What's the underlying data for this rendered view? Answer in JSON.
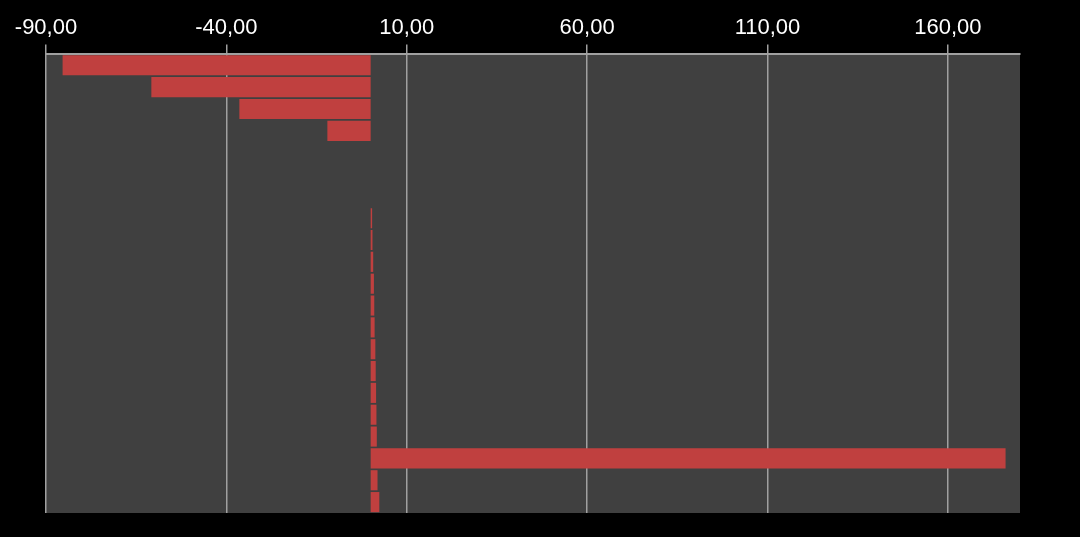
{
  "chart_data": {
    "type": "bar",
    "orientation": "horizontal",
    "categories": [
      null,
      null,
      null,
      null,
      null,
      null,
      null,
      null,
      null,
      null,
      null,
      null,
      null,
      null,
      null,
      null,
      null,
      null,
      null,
      null,
      null
    ],
    "values": [
      -85.4,
      -60.8,
      -36.4,
      -12.0,
      null,
      null,
      null,
      0.4,
      0.5,
      0.7,
      0.9,
      1.0,
      1.1,
      1.3,
      1.4,
      1.5,
      1.6,
      1.7,
      176.0,
      1.9,
      2.4
    ],
    "color": "#c0403f",
    "xlim": [
      -90,
      180
    ],
    "xticks": [
      {
        "value": -90,
        "label": "-90,00"
      },
      {
        "value": -40,
        "label": "-40,00"
      },
      {
        "value": 10,
        "label": "10,00"
      },
      {
        "value": 60,
        "label": "60,00"
      },
      {
        "value": 110,
        "label": "110,00"
      },
      {
        "value": 160,
        "label": "160,00"
      }
    ],
    "grid": "x",
    "legend": false,
    "tick_labels": "x"
  }
}
